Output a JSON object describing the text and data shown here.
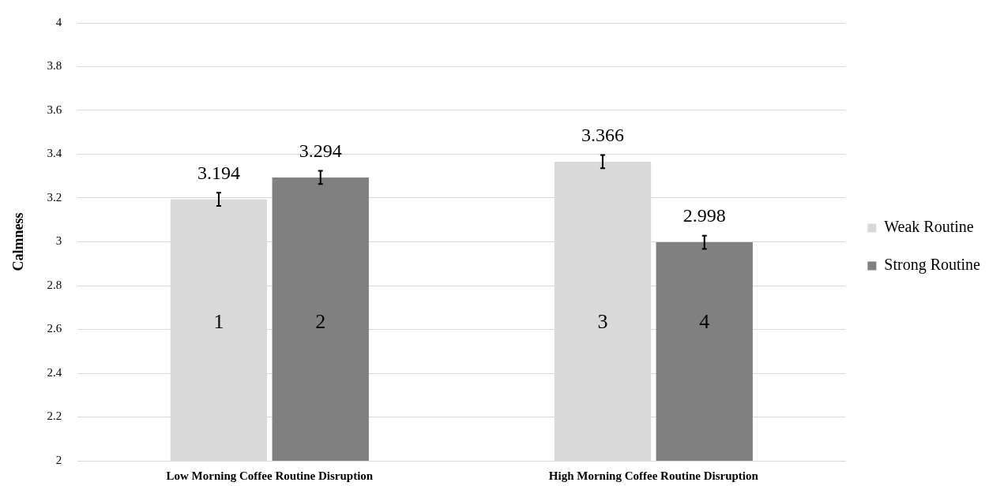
{
  "chart_data": {
    "type": "bar",
    "ylabel": "Calmness",
    "categories": [
      "Low Morning Coffee Routine Disruption",
      "High Morning Coffee Routine Disruption"
    ],
    "series": [
      {
        "name": "Weak Routine",
        "color": "#d9d9d9",
        "values": [
          3.194,
          3.366
        ],
        "errors": [
          0.03,
          0.03
        ]
      },
      {
        "name": "Strong Routine",
        "color": "#808080",
        "values": [
          3.294,
          2.998
        ],
        "errors": [
          0.03,
          0.03
        ]
      }
    ],
    "ylim": [
      2,
      4
    ],
    "yticks": [
      2,
      2.2,
      2.4,
      2.6,
      2.8,
      3,
      3.2,
      3.4,
      3.6,
      3.8,
      4
    ],
    "grid": "y",
    "legend": "right",
    "data_labels": true,
    "annotations": [
      {
        "text": "1",
        "x": "Low Morning Coffee Routine Disruption",
        "y": 2.63
      },
      {
        "text": "2",
        "x": "Low Morning Coffee Routine Disruption",
        "y": 2.63
      },
      {
        "text": "3",
        "x": "High Morning Coffee Routine Disruption",
        "y": 2.63
      },
      {
        "text": "4",
        "x": "High Morning Coffee Routine Disruption",
        "y": 2.63
      }
    ]
  }
}
